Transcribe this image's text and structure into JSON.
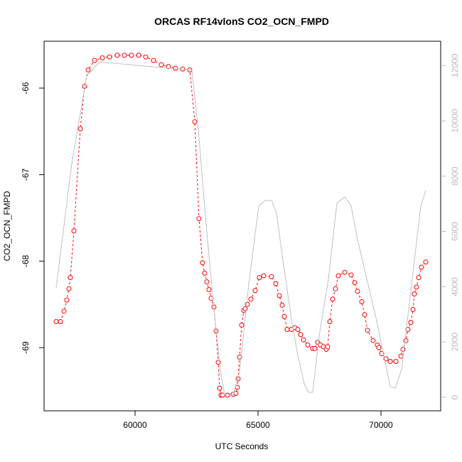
{
  "chart_data": {
    "type": "line",
    "title": "ORCAS RF14vlonS CO2_OCN_FMPD",
    "x_label": "UTC Seconds",
    "y_label": "CO2_OCN_FMPD",
    "xlim": [
      56301,
      72428
    ],
    "xticks": [
      60000,
      65000,
      70000
    ],
    "ylim": [
      -69.731,
      -65.458
    ],
    "yticks": [
      -66,
      -67,
      -68,
      -69
    ],
    "y2lim": [
      -488,
      12879
    ],
    "y2ticks": [
      0,
      2000,
      4000,
      6000,
      8000,
      10000,
      12000
    ],
    "series": [
      {
        "color": "#ff0000",
        "x": [
          56792,
          56965,
          57110,
          57225,
          57312,
          57370,
          57514,
          57775,
          57948,
          58092,
          58353,
          58671,
          58960,
          59277,
          59566,
          59855,
          60145,
          60434,
          60751,
          61069,
          61358,
          61647,
          61936,
          62225,
          62428,
          62601,
          62746,
          62832,
          62919,
          63006,
          63092,
          63208,
          63295,
          63382,
          63439,
          63497,
          63555,
          63757,
          63988,
          64104,
          64162,
          64191,
          64249,
          64335,
          64422,
          64480,
          64566,
          64711,
          64884,
          65058,
          65231,
          65549,
          65723,
          65867,
          65983,
          66069,
          66185,
          66358,
          66503,
          66618,
          66734,
          66850,
          67023,
          67225,
          67312,
          67428,
          67543,
          67659,
          67775,
          67832,
          67919,
          68035,
          68150,
          68266,
          68526,
          68786,
          68931,
          69046,
          69220,
          69335,
          69451,
          69682,
          69855,
          69913,
          70029,
          70202,
          70376,
          70607,
          70809,
          70896,
          71012,
          71098,
          71214,
          71301,
          71358,
          71445,
          71532,
          71647,
          71821
        ],
        "values": [
          -68.7,
          -68.7,
          -68.58,
          -68.45,
          -68.32,
          -68.19,
          -67.65,
          -66.47,
          -65.98,
          -65.79,
          -65.68,
          -65.65,
          -65.64,
          -65.62,
          -65.62,
          -65.62,
          -65.62,
          -65.64,
          -65.68,
          -65.73,
          -65.75,
          -65.77,
          -65.78,
          -65.79,
          -66.39,
          -67.51,
          -68.02,
          -68.14,
          -68.24,
          -68.33,
          -68.43,
          -68.53,
          -68.81,
          -69.17,
          -69.47,
          -69.55,
          -69.55,
          -69.55,
          -69.54,
          -69.53,
          -69.46,
          -69.36,
          -69.11,
          -68.74,
          -68.57,
          -68.55,
          -68.5,
          -68.44,
          -68.34,
          -68.19,
          -68.17,
          -68.18,
          -68.26,
          -68.4,
          -68.51,
          -68.64,
          -68.79,
          -68.79,
          -68.77,
          -68.79,
          -68.85,
          -68.91,
          -68.97,
          -69.01,
          -69.01,
          -68.94,
          -68.97,
          -68.99,
          -69.02,
          -68.99,
          -68.7,
          -68.44,
          -68.32,
          -68.17,
          -68.13,
          -68.16,
          -68.25,
          -68.35,
          -68.47,
          -68.62,
          -68.8,
          -68.92,
          -68.97,
          -69.0,
          -69.07,
          -69.13,
          -69.16,
          -69.16,
          -69.1,
          -69.02,
          -68.92,
          -68.79,
          -68.71,
          -68.56,
          -68.38,
          -68.3,
          -68.19,
          -68.07,
          -68.01
        ]
      },
      {
        "color": "#c0c0c0",
        "axis": "y2",
        "x": [
          56792,
          57428,
          58035,
          58555,
          62312,
          62572,
          62861,
          63179,
          63468,
          63642,
          63988,
          64249,
          64624,
          65029,
          65289,
          65549,
          65751,
          66012,
          66358,
          66618,
          66879,
          67052,
          67225,
          67486,
          67861,
          68208,
          68526,
          68786,
          69046,
          69827,
          70376,
          70578,
          70838,
          71618,
          71821
        ],
        "values": [
          3950,
          8460,
          11620,
          12130,
          11830,
          9690,
          6560,
          3440,
          1000,
          80,
          80,
          930,
          4090,
          6920,
          7120,
          7120,
          6660,
          4960,
          2830,
          1520,
          490,
          180,
          180,
          2210,
          4270,
          7020,
          7250,
          6920,
          5710,
          2750,
          390,
          330,
          1000,
          6920,
          7480
        ]
      }
    ]
  }
}
